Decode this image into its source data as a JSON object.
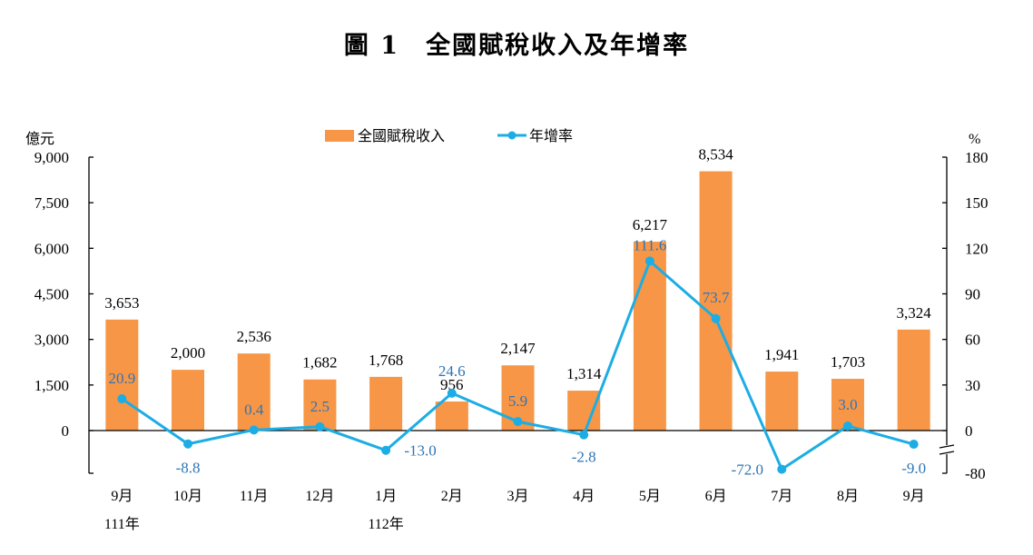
{
  "chart_data": {
    "type": "bar+line",
    "title": "圖 1　全國賦稅收入及年增率",
    "left_unit": "億元",
    "right_unit": "%",
    "categories": [
      "9月",
      "10月",
      "11月",
      "12月",
      "1月",
      "2月",
      "3月",
      "4月",
      "5月",
      "6月",
      "7月",
      "8月",
      "9月"
    ],
    "year_labels": [
      {
        "index": 0,
        "label": "111年"
      },
      {
        "index": 4,
        "label": "112年"
      }
    ],
    "series": [
      {
        "name": "全國賦稅收入",
        "type": "bar",
        "axis": "left",
        "color": "#F79646",
        "values": [
          3653,
          2000,
          2536,
          1682,
          1768,
          956,
          2147,
          1314,
          6217,
          8534,
          1941,
          1703,
          3324
        ],
        "labels": [
          "3,653",
          "2,000",
          "2,536",
          "1,682",
          "1,768",
          "956",
          "2,147",
          "1,314",
          "6,217",
          "8,534",
          "1,941",
          "1,703",
          "3,324"
        ]
      },
      {
        "name": "年增率",
        "type": "line",
        "axis": "right",
        "color": "#1CADE4",
        "label_color": "#2E75B6",
        "values": [
          20.9,
          -8.8,
          0.4,
          2.5,
          -13.0,
          24.6,
          5.9,
          -2.8,
          111.6,
          73.7,
          -72.0,
          3.0,
          -9.0
        ],
        "labels": [
          "20.9",
          "-8.8",
          "0.4",
          "2.5",
          "-13.0",
          "24.6",
          "5.9",
          "-2.8",
          "111.6",
          "73.7",
          "-72.0",
          "3.0",
          "-9.0"
        ]
      }
    ],
    "left_axis": {
      "range": [
        0,
        9000
      ],
      "ticks": [
        "9,000",
        "7,500",
        "6,000",
        "4,500",
        "3,000",
        "1,500",
        "0"
      ],
      "tick_values": [
        9000,
        7500,
        6000,
        4500,
        3000,
        1500,
        0
      ]
    },
    "right_axis": {
      "range": [
        -80,
        180
      ],
      "ticks": [
        "180",
        "150",
        "120",
        "90",
        "60",
        "30",
        "0",
        "-80"
      ],
      "tick_values": [
        180,
        150,
        120,
        90,
        60,
        30,
        0,
        -80
      ],
      "axis_break": "between 0 and -80"
    },
    "legend": "top-center",
    "grid": false
  }
}
